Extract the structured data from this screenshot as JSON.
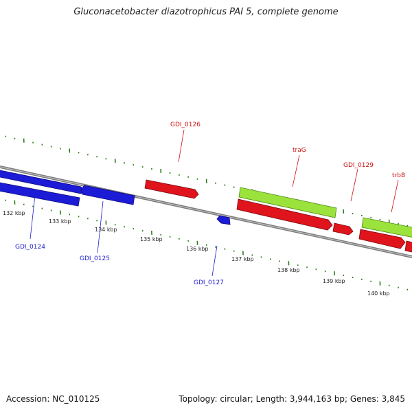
{
  "title": "Gluconacetobacter diazotrophicus PAI 5, complete genome",
  "footer": {
    "accession": "Accession: NC_010125",
    "summary": "Topology: circular; Length: 3,944,163 bp; Genes: 3,845"
  },
  "colors": {
    "backbone": "#8c8c8c",
    "tick": "#2e7d1a",
    "gene_blue": "#1c1cd6",
    "gene_red": "#e0141c",
    "gene_green": "#9be23c",
    "label_blue": "#1a1acc",
    "label_red": "#cc1111"
  },
  "kbp_labels": [
    "132 kbp",
    "133 kbp",
    "134 kbp",
    "135 kbp",
    "136 kbp",
    "137 kbp",
    "138 kbp",
    "139 kbp",
    "140 kbp"
  ],
  "gene_labels": {
    "blue": [
      "GDI_0124",
      "GDI_0125",
      "GDI_0127"
    ],
    "red": [
      "GDI_0126",
      "traG",
      "GDI_0129",
      "trbB"
    ]
  }
}
